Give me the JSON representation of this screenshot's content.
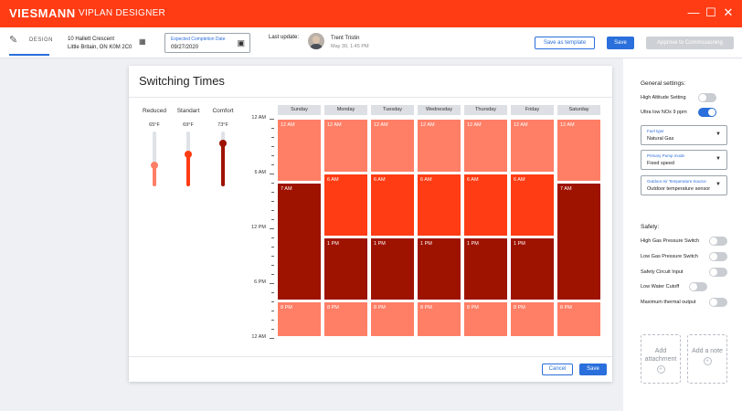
{
  "app": {
    "brand": "VIESMANN",
    "name": "VIPLAN DESIGNER"
  },
  "colors": {
    "accent": "#ff3c14",
    "primary": "#2a6fdb",
    "reduced": "#ff7f66",
    "standard": "#ff3c14",
    "comfort": "#9e1300"
  },
  "header": {
    "design_label": "DESIGN",
    "address_line1": "10 Hallett Crescent",
    "address_line2": "Little Britain, ON K0M 2C0",
    "completion_label": "Expected Completion Date",
    "completion_value": "09/27/2020",
    "last_update_label": "Last update:",
    "user_name": "Trent Tristin",
    "user_time": "May 30, 1:45 PM",
    "save_template": "Save as template",
    "save": "Save",
    "approve": "Approve to Commissioning"
  },
  "card": {
    "title": "Switching Times",
    "cancel": "Cancel",
    "save": "Save",
    "temps": [
      {
        "label": "Reduced",
        "value": "65°F",
        "level": 0.38,
        "color": "#ff7f66"
      },
      {
        "label": "Standart",
        "value": "69°F",
        "level": 0.58,
        "color": "#ff3c14"
      },
      {
        "label": "Comfort",
        "value": "73°F",
        "level": 0.78,
        "color": "#9e1300"
      }
    ],
    "hours": [
      "12 AM",
      "6 AM",
      "12 PM",
      "6 PM",
      "12 AM"
    ],
    "days": [
      {
        "name": "Sunday",
        "blocks": [
          {
            "start": 0,
            "end": 7,
            "label": "12 AM",
            "color": "#ff7f66"
          },
          {
            "start": 7,
            "end": 20,
            "label": "7 AM",
            "color": "#9e1300"
          },
          {
            "start": 20,
            "end": 24,
            "label": "8 PM",
            "color": "#ff7f66"
          }
        ]
      },
      {
        "name": "Monday",
        "blocks": [
          {
            "start": 0,
            "end": 6,
            "label": "12 AM",
            "color": "#ff7f66"
          },
          {
            "start": 6,
            "end": 13,
            "label": "6 AM",
            "color": "#ff3c14"
          },
          {
            "start": 13,
            "end": 20,
            "label": "1 PM",
            "color": "#9e1300"
          },
          {
            "start": 20,
            "end": 24,
            "label": "8 PM",
            "color": "#ff7f66"
          }
        ]
      },
      {
        "name": "Tuesday",
        "blocks": [
          {
            "start": 0,
            "end": 6,
            "label": "12 AM",
            "color": "#ff7f66"
          },
          {
            "start": 6,
            "end": 13,
            "label": "6 AM",
            "color": "#ff3c14"
          },
          {
            "start": 13,
            "end": 20,
            "label": "1 PM",
            "color": "#9e1300"
          },
          {
            "start": 20,
            "end": 24,
            "label": "8 PM",
            "color": "#ff7f66"
          }
        ]
      },
      {
        "name": "Wednesday",
        "blocks": [
          {
            "start": 0,
            "end": 6,
            "label": "12 AM",
            "color": "#ff7f66"
          },
          {
            "start": 6,
            "end": 13,
            "label": "6 AM",
            "color": "#ff3c14"
          },
          {
            "start": 13,
            "end": 20,
            "label": "1 PM",
            "color": "#9e1300"
          },
          {
            "start": 20,
            "end": 24,
            "label": "8 PM",
            "color": "#ff7f66"
          }
        ]
      },
      {
        "name": "Thursday",
        "blocks": [
          {
            "start": 0,
            "end": 6,
            "label": "12 AM",
            "color": "#ff7f66"
          },
          {
            "start": 6,
            "end": 13,
            "label": "6 AM",
            "color": "#ff3c14"
          },
          {
            "start": 13,
            "end": 20,
            "label": "1 PM",
            "color": "#9e1300"
          },
          {
            "start": 20,
            "end": 24,
            "label": "8 PM",
            "color": "#ff7f66"
          }
        ]
      },
      {
        "name": "Friday",
        "blocks": [
          {
            "start": 0,
            "end": 6,
            "label": "12 AM",
            "color": "#ff7f66"
          },
          {
            "start": 6,
            "end": 13,
            "label": "6 AM",
            "color": "#ff3c14"
          },
          {
            "start": 13,
            "end": 20,
            "label": "1 PM",
            "color": "#9e1300"
          },
          {
            "start": 20,
            "end": 24,
            "label": "8 PM",
            "color": "#ff7f66"
          }
        ]
      },
      {
        "name": "Saturday",
        "blocks": [
          {
            "start": 0,
            "end": 7,
            "label": "12 AM",
            "color": "#ff7f66"
          },
          {
            "start": 7,
            "end": 20,
            "label": "7 AM",
            "color": "#9e1300"
          },
          {
            "start": 20,
            "end": 24,
            "label": "8 PM",
            "color": "#ff7f66"
          }
        ]
      }
    ]
  },
  "panel": {
    "general_title": "General settings:",
    "general_toggles": [
      {
        "label": "High Altitude Setting",
        "on": false
      },
      {
        "label": "Ultra low NOx 9 ppm",
        "on": true
      }
    ],
    "selects": [
      {
        "label": "Fuel type",
        "value": "Natural Gas"
      },
      {
        "label": "Primary Pump mode",
        "value": "Fixed speed"
      },
      {
        "label": "Outdoor Air Temperature Source",
        "value": "Outdoor temperature sensor"
      }
    ],
    "safety_title": "Safety:",
    "safety_toggles": [
      {
        "label": "High Gas Pressure Switch",
        "on": false
      },
      {
        "label": "Low Gas Pressure Switch",
        "on": false
      },
      {
        "label": "Safety Circuit Input",
        "on": false
      },
      {
        "label": "Low Water Cutoff",
        "on": false
      },
      {
        "label": "Maximum thermal output",
        "on": false
      }
    ],
    "add_attachment": "Add attachment",
    "add_note": "Add a note"
  }
}
